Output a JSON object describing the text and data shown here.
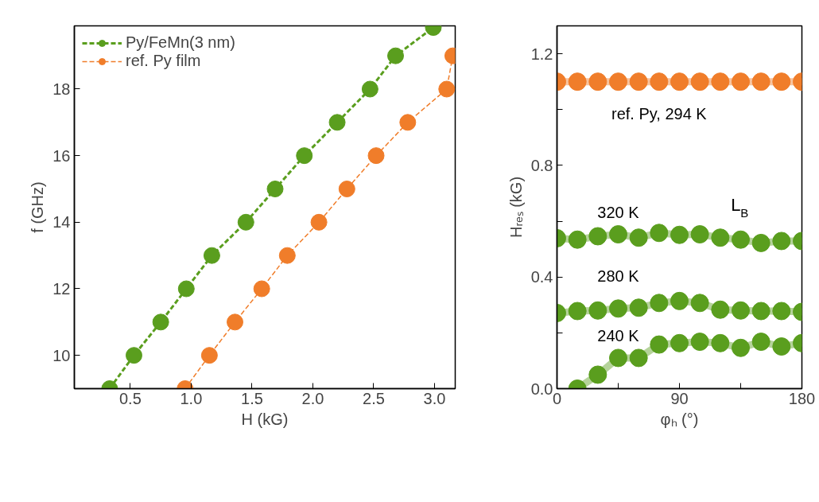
{
  "chart_data": [
    {
      "type": "line",
      "xlabel": "H (kG)",
      "ylabel": "f (GHz)",
      "xlim": [
        0.04,
        3.17
      ],
      "ylim": [
        9.0,
        19.9
      ],
      "xticks": [
        0.5,
        {
          "value": 1.0,
          "label": "1.0"
        },
        1.5,
        {
          "value": 2.0,
          "label": "2.0"
        },
        2.5,
        {
          "value": 3.0,
          "label": "3.0"
        }
      ],
      "yticks": [
        10,
        12,
        14,
        16,
        18
      ],
      "grid": false,
      "legend": "top left",
      "line_style": "dashed",
      "series": [
        {
          "name": "Py/FeMn(3 nm)",
          "color": "#5a9e1e",
          "marker": "circle",
          "x": [
            0.33,
            0.53,
            0.75,
            0.96,
            1.17,
            1.45,
            1.69,
            1.93,
            2.2,
            2.47,
            2.68,
            2.99
          ],
          "values": [
            9,
            10,
            11,
            12,
            13,
            14,
            15,
            16,
            17,
            18,
            19,
            19.85
          ]
        },
        {
          "name": "ref. Py film",
          "color": "#f07d2a",
          "marker": "circle",
          "x": [
            0.95,
            1.15,
            1.36,
            1.58,
            1.79,
            2.05,
            2.28,
            2.52,
            2.78,
            3.1,
            3.15
          ],
          "values": [
            9,
            10,
            11,
            12,
            13,
            14,
            15,
            16,
            17,
            18,
            19
          ]
        }
      ]
    },
    {
      "type": "line",
      "xlabel": "φₕ (°)",
      "ylabel": "Hᵣₑₛ (kG)",
      "xlim": [
        0,
        180
      ],
      "ylim": [
        0,
        1.3
      ],
      "xticks": [
        0,
        {
          "value": 45,
          "label": null
        },
        90,
        {
          "value": 135,
          "label": null
        },
        180
      ],
      "yticks": [
        {
          "value": 0.0,
          "label": "0.0"
        },
        {
          "value": 0.2,
          "label": null
        },
        0.4,
        {
          "value": 0.6,
          "label": null
        },
        0.8,
        {
          "value": 1.0,
          "label": null
        },
        1.2
      ],
      "grid": false,
      "legend": false,
      "line_style": "solid",
      "annotations": [
        "L$_{B}$"
      ],
      "series": [
        {
          "name": "ref. Py, 294 K",
          "color": "#f07d2a",
          "marker": "circle",
          "x": [
            0,
            15,
            30,
            45,
            60,
            75,
            90,
            105,
            120,
            135,
            150,
            165,
            180
          ],
          "values": [
            1.1,
            1.1,
            1.1,
            1.1,
            1.1,
            1.1,
            1.1,
            1.1,
            1.1,
            1.1,
            1.1,
            1.1,
            1.1
          ]
        },
        {
          "name": "320 K",
          "color": "#5a9e1e",
          "marker": "circle",
          "x": [
            0,
            15,
            30,
            45,
            60,
            75,
            90,
            105,
            120,
            135,
            150,
            165,
            180
          ],
          "values": [
            0.539,
            0.534,
            0.546,
            0.553,
            0.541,
            0.558,
            0.551,
            0.553,
            0.541,
            0.534,
            0.522,
            0.529,
            0.529
          ]
        },
        {
          "name": "280 K",
          "color": "#5a9e1e",
          "marker": "circle",
          "x": [
            0,
            15,
            30,
            45,
            60,
            75,
            90,
            105,
            120,
            135,
            150,
            165,
            180
          ],
          "values": [
            0.271,
            0.278,
            0.28,
            0.287,
            0.29,
            0.307,
            0.314,
            0.307,
            0.283,
            0.28,
            0.278,
            0.278,
            0.275
          ]
        },
        {
          "name": "240 K",
          "color": "#5a9e1e",
          "marker": "circle",
          "x": [
            15,
            30,
            45,
            60,
            75,
            90,
            105,
            120,
            135,
            150,
            165,
            180
          ],
          "values": [
            0.0,
            0.05,
            0.11,
            0.11,
            0.158,
            0.163,
            0.168,
            0.163,
            0.146,
            0.168,
            0.151,
            0.163
          ]
        }
      ]
    }
  ]
}
